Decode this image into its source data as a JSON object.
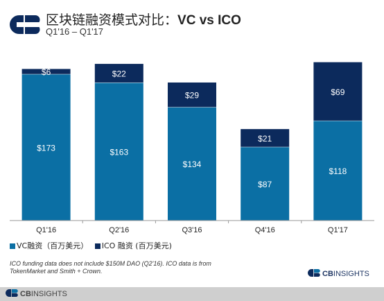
{
  "header": {
    "title_cn": "区块链融资模式对比：",
    "title_en": "VC vs ICO",
    "subtitle": "Q1'16 – Q1'17"
  },
  "colors": {
    "vc": "#0b6fa4",
    "ico": "#0c2a5c",
    "axis": "#9a9a9a",
    "footer": "#cfcfcf",
    "logo": "#0c2a5c"
  },
  "chart_data": {
    "type": "bar",
    "stacked": true,
    "categories": [
      "Q1'16",
      "Q2'16",
      "Q3'16",
      "Q4'16",
      "Q1'17"
    ],
    "series": [
      {
        "name": "VC融资（百万美元）",
        "values": [
          173,
          163,
          134,
          87,
          118
        ],
        "labels": [
          "$173",
          "$163",
          "$134",
          "$87",
          "$118"
        ]
      },
      {
        "name": "ICO 融资 (百万美元)",
        "values": [
          6,
          22,
          29,
          21,
          69
        ],
        "labels": [
          "$6",
          "$22",
          "$29",
          "$21",
          "$69"
        ]
      }
    ],
    "ylim": [
      0,
      190
    ],
    "grid": false,
    "legend": "bottom-left"
  },
  "footnote": "ICO funding data does not include $150M DAO (Q2'16). ICO data is from TokenMarket and Smith + Crown.",
  "brand": {
    "cb": "CB",
    "rest": "INSIGHTS"
  },
  "footer": {
    "cb": "CB",
    "rest": "INSIGHTS"
  }
}
